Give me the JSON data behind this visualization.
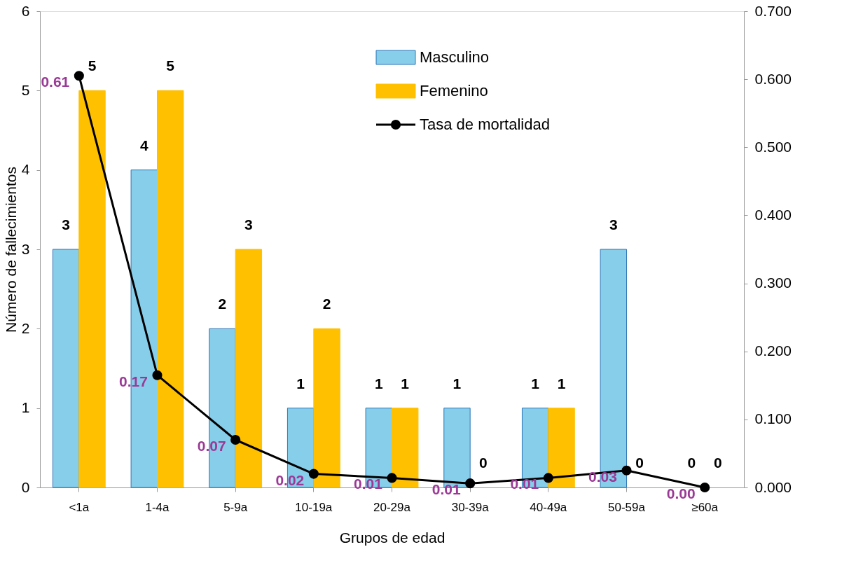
{
  "chart_data": {
    "type": "bar",
    "xlabel": "Grupos de edad",
    "ylabel": "Número de fallecimientos",
    "categories": [
      "<1a",
      "1-4a",
      "5-9a",
      "10-19a",
      "20-29a",
      "30-39a",
      "40-49a",
      "50-59a",
      "≥60a"
    ],
    "series": [
      {
        "name": "Masculino",
        "type": "bar",
        "color": "#87ceeb",
        "values": [
          3,
          4,
          2,
          1,
          1,
          1,
          1,
          3,
          0
        ],
        "value_labels": [
          "3",
          "4",
          "2",
          "1",
          "1",
          "1",
          "1",
          "3",
          "0"
        ]
      },
      {
        "name": "Femenino",
        "type": "bar",
        "color": "#ffc000",
        "values": [
          5,
          5,
          3,
          2,
          1,
          0,
          1,
          0,
          0
        ],
        "value_labels": [
          "5",
          "5",
          "3",
          "2",
          "1",
          "0",
          "1",
          "0",
          "0"
        ]
      },
      {
        "name": "Tasa de mortalidad",
        "type": "line",
        "axis": "y2",
        "color": "#000000",
        "marker": "circle",
        "values": [
          0.605,
          0.165,
          0.07,
          0.02,
          0.014,
          0.006,
          0.014,
          0.025,
          0.0
        ],
        "value_labels": [
          "0.61",
          "0.17",
          "0.07",
          "0.02",
          "0.01",
          "0.01",
          "0.01",
          "0.03",
          "0.00"
        ]
      }
    ],
    "ylim": [
      0,
      6
    ],
    "yticks": [
      0,
      1,
      2,
      3,
      4,
      5,
      6
    ],
    "y2lim": [
      0,
      0.7
    ],
    "y2ticks": [
      {
        "value": 0,
        "label": "0.000"
      },
      {
        "value": 0.1,
        "label": "0.100"
      },
      {
        "value": 0.2,
        "label": "0.200"
      },
      {
        "value": 0.3,
        "label": "0.300"
      },
      {
        "value": 0.4,
        "label": "0.400"
      },
      {
        "value": 0.5,
        "label": "0.500"
      },
      {
        "value": 0.6,
        "label": "0.600"
      },
      {
        "value": 0.7,
        "label": "0.700"
      }
    ],
    "grid": false,
    "legend": "top"
  }
}
